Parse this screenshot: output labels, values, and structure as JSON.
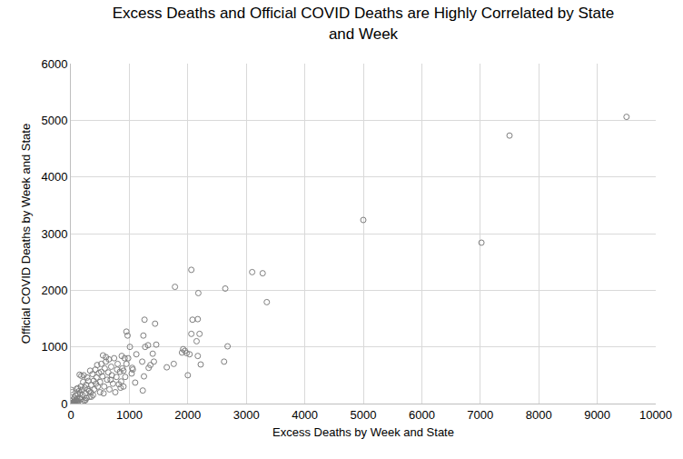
{
  "chart_data": {
    "type": "scatter",
    "title": "Excess Deaths and Official COVID Deaths are Highly Correlated by State and Week",
    "x_label": "Excess Deaths by Week and State",
    "y_label": "Official COVID Deaths by Week and State",
    "color": "#7f7f7f",
    "marker": "circle-open",
    "grid": true,
    "xlim": [
      0,
      10000
    ],
    "xticks": [
      0,
      1000,
      2000,
      3000,
      4000,
      5000,
      6000,
      7000,
      8000,
      9000,
      10000
    ],
    "ylim": [
      0,
      6000
    ],
    "yticks": [
      0,
      1000,
      2000,
      3000,
      4000,
      5000,
      6000
    ],
    "x": [
      9500,
      7500,
      7020,
      5000,
      3350,
      3280,
      3100,
      2680,
      2640,
      2620,
      2220,
      2200,
      2180,
      2170,
      2150,
      2170,
      2080,
      2060,
      2060,
      2030,
      2000,
      1980,
      1950,
      1920,
      1900,
      1780,
      1760,
      1640,
      1460,
      1440,
      1420,
      1400,
      1360,
      1330,
      1320,
      1270,
      1260,
      1240,
      1230,
      1220,
      1250,
      1120,
      1100,
      1060,
      1050,
      1040,
      1010,
      980,
      970,
      950,
      950,
      930,
      920,
      900,
      900,
      880,
      870,
      860,
      850,
      840,
      820,
      800,
      790,
      780,
      760,
      740,
      720,
      700,
      690,
      680,
      660,
      650,
      640,
      620,
      600,
      580,
      570,
      560,
      550,
      540,
      520,
      500,
      500,
      480,
      460,
      450,
      440,
      420,
      400,
      390,
      380,
      370,
      350,
      340,
      330,
      320,
      300,
      290,
      280,
      270,
      260,
      250,
      240,
      230,
      220,
      210,
      200,
      190,
      180,
      170,
      160,
      150,
      140,
      130,
      120,
      110,
      100,
      90,
      80,
      70,
      60,
      50,
      40,
      30,
      20,
      10,
      0,
      5,
      15,
      25,
      35,
      45,
      55,
      65,
      75,
      85,
      95,
      105,
      115,
      10,
      120,
      150,
      180,
      600,
      520,
      430,
      350,
      250,
      310,
      200
    ],
    "values": [
      5060,
      4730,
      2840,
      3240,
      1790,
      2300,
      2320,
      1010,
      2030,
      740,
      690,
      1230,
      1950,
      1490,
      1100,
      840,
      1480,
      2360,
      1230,
      870,
      500,
      890,
      930,
      960,
      900,
      2060,
      700,
      640,
      1040,
      1410,
      740,
      880,
      680,
      630,
      1030,
      1000,
      1480,
      1200,
      230,
      740,
      480,
      870,
      370,
      600,
      630,
      530,
      1000,
      800,
      1200,
      1270,
      700,
      470,
      800,
      580,
      300,
      620,
      840,
      390,
      280,
      560,
      340,
      700,
      600,
      470,
      200,
      800,
      350,
      500,
      650,
      420,
      250,
      780,
      550,
      420,
      740,
      620,
      300,
      180,
      850,
      480,
      700,
      380,
      200,
      540,
      300,
      680,
      460,
      600,
      250,
      400,
      150,
      520,
      330,
      200,
      580,
      120,
      400,
      250,
      460,
      100,
      330,
      180,
      280,
      50,
      500,
      380,
      150,
      240,
      80,
      300,
      180,
      100,
      220,
      40,
      160,
      90,
      260,
      50,
      140,
      20,
      100,
      30,
      70,
      10,
      200,
      40,
      5,
      0,
      10,
      0,
      15,
      5,
      20,
      30,
      10,
      60,
      20,
      40,
      5,
      240,
      270,
      510,
      490,
      820,
      560,
      350,
      120,
      60,
      220,
      30
    ]
  }
}
